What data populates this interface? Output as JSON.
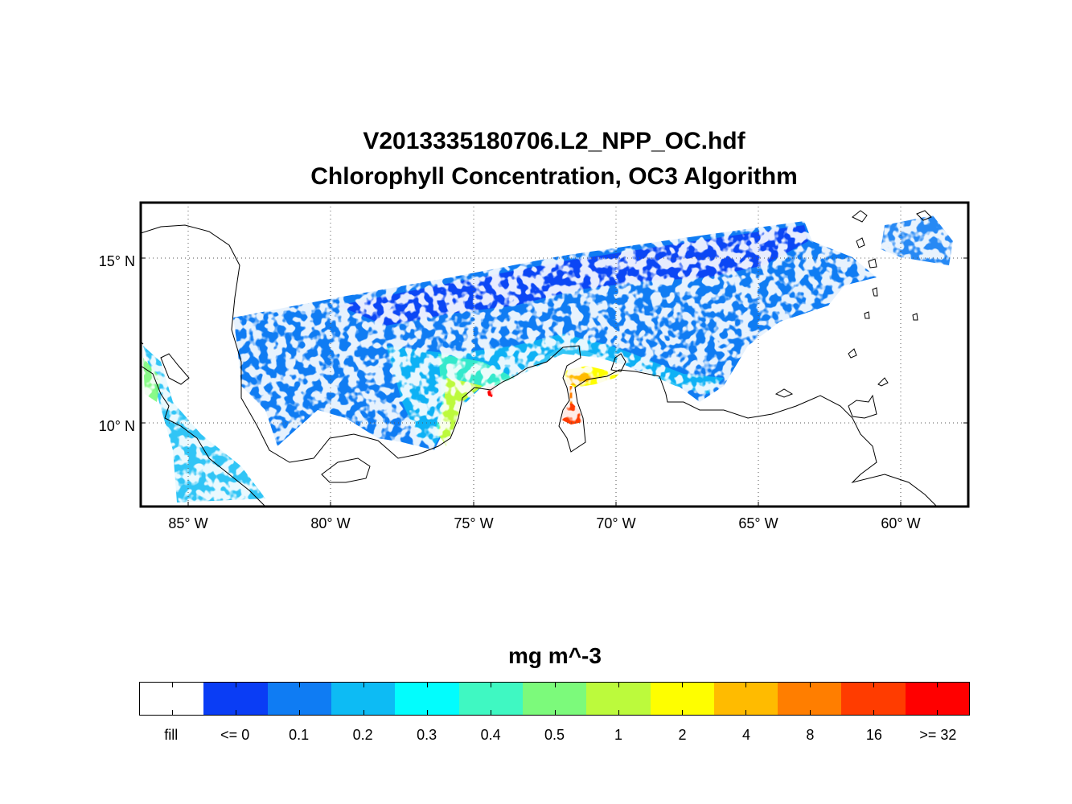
{
  "title": {
    "line1": "V2013335180706.L2_NPP_OC.hdf",
    "line2": "Chlorophyll Concentration, OC3 Algorithm"
  },
  "map": {
    "lat_ticks": [
      "15° N",
      "10° N"
    ],
    "lon_ticks": [
      "85° W",
      "80° W",
      "75° W",
      "70° W",
      "65° W",
      "60° W"
    ],
    "colors": {
      "land_outline": "#000000",
      "grid": "#555555"
    }
  },
  "colorbar": {
    "title": "mg m^-3",
    "bins": [
      {
        "label": "fill",
        "color": "#ffffff"
      },
      {
        "label": "<= 0",
        "color": "#0a3df5"
      },
      {
        "label": "0.1",
        "color": "#0f7cf3"
      },
      {
        "label": "0.2",
        "color": "#0dbbf4"
      },
      {
        "label": "0.3",
        "color": "#02fdfd"
      },
      {
        "label": "0.4",
        "color": "#3ff8c2"
      },
      {
        "label": "0.5",
        "color": "#7cfa7b"
      },
      {
        "label": "1",
        "color": "#bcfa3c"
      },
      {
        "label": "2",
        "color": "#fefe00"
      },
      {
        "label": "4",
        "color": "#ffbb00"
      },
      {
        "label": "8",
        "color": "#ff7e00"
      },
      {
        "label": "16",
        "color": "#ff3c00"
      },
      {
        "label": ">= 32",
        "color": "#ff0000"
      }
    ]
  }
}
